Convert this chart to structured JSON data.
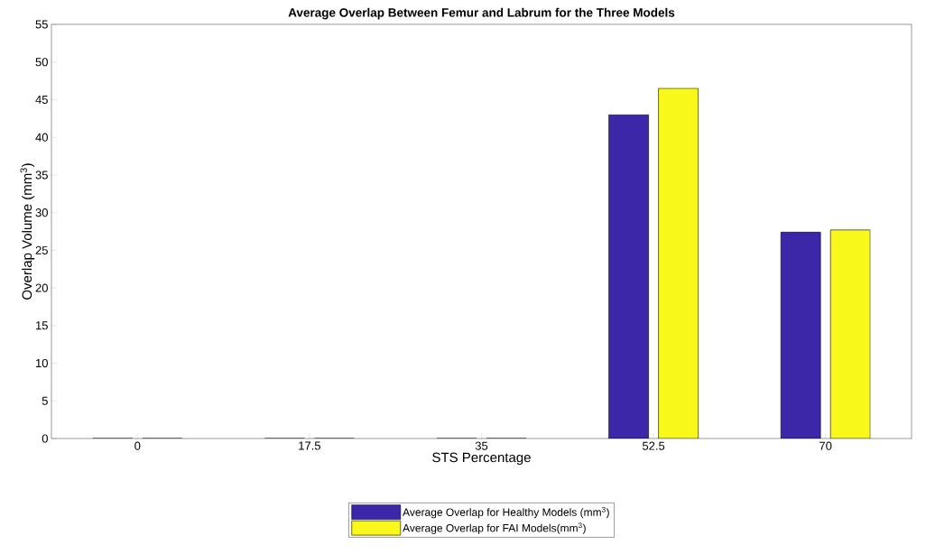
{
  "chart_data": {
    "type": "bar",
    "title": "Average Overlap Between Femur and Labrum for the Three Models",
    "xlabel": "STS Percentage",
    "ylabel": "Overlap Volume (mm$^{3}$)",
    "categories": [
      "0",
      "17.5",
      "35",
      "52.5",
      "70"
    ],
    "series": [
      {
        "name": "Average Overlap for Healthy Models (mm$^{3}$)",
        "color": "#3b27a8",
        "values": [
          0,
          0,
          0,
          43.0,
          27.4
        ]
      },
      {
        "name": "Average Overlap for FAI Models(mm$^{3}$)",
        "color": "#f8f81a",
        "values": [
          0,
          0,
          0,
          46.5,
          27.7
        ]
      }
    ],
    "ylim": [
      0,
      55
    ],
    "yticks": [
      0,
      5,
      10,
      15,
      20,
      25,
      30,
      35,
      40,
      45,
      50,
      55
    ],
    "legend": "bottom"
  }
}
